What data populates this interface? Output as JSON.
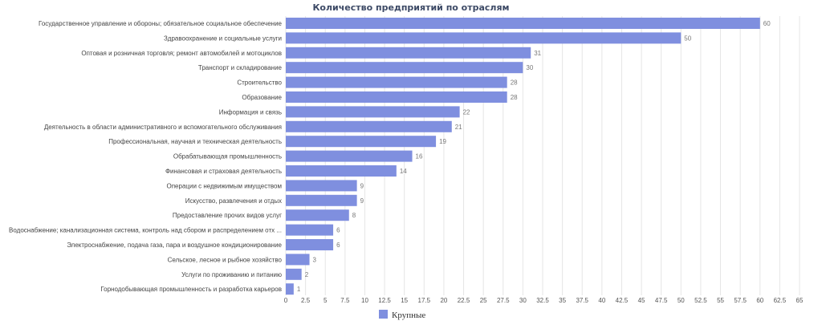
{
  "chart_data": {
    "type": "bar",
    "orientation": "horizontal",
    "title": "Количество предприятий по отраслям",
    "categories": [
      "Государственное управление и обороны; обязательное социальное обеспечение",
      "Здравоохранение и социальные услуги",
      "Оптовая и розничная торговля; ремонт автомобилей и мотоциклов",
      "Транспорт и складирование",
      "Строительство",
      "Образование",
      "Информация и связь",
      "Деятельность в области административного и вспомогательного обслуживания",
      "Профессиональная, научная и техническая деятельность",
      "Обрабатывающая промышленность",
      "Финансовая и страховая деятельность",
      "Операции с недвижимым имуществом",
      "Искусство, развлечения и отдых",
      "Предоставление прочих видов услуг",
      "Водоснабжение; канализационная система, контроль над сбором и распределением отх ...",
      "Электроснабжение, подача газа, пара и воздушное кондиционирование",
      "Сельское, лесное и рыбное хозяйство",
      "Услуги по проживанию и питанию",
      "Горнодобывающая промышленность и разработка карьеров"
    ],
    "series": [
      {
        "name": "Крупные",
        "color": "#7f8fdf",
        "values": [
          60,
          50,
          31,
          30,
          28,
          28,
          22,
          21,
          19,
          16,
          14,
          9,
          9,
          8,
          6,
          6,
          3,
          2,
          1
        ]
      }
    ],
    "xlim": [
      0,
      65
    ],
    "x_ticks": [
      "0",
      "2.5",
      "5",
      "7.5",
      "10",
      "12.5",
      "15",
      "17.5",
      "20",
      "22.5",
      "25",
      "27.5",
      "30",
      "32.5",
      "35",
      "37.5",
      "40",
      "42.5",
      "45",
      "47.5",
      "50",
      "52.5",
      "55",
      "57.5",
      "60",
      "62.5",
      "65"
    ],
    "grid": true,
    "legend_position": "bottom-center",
    "value_labels": true
  }
}
